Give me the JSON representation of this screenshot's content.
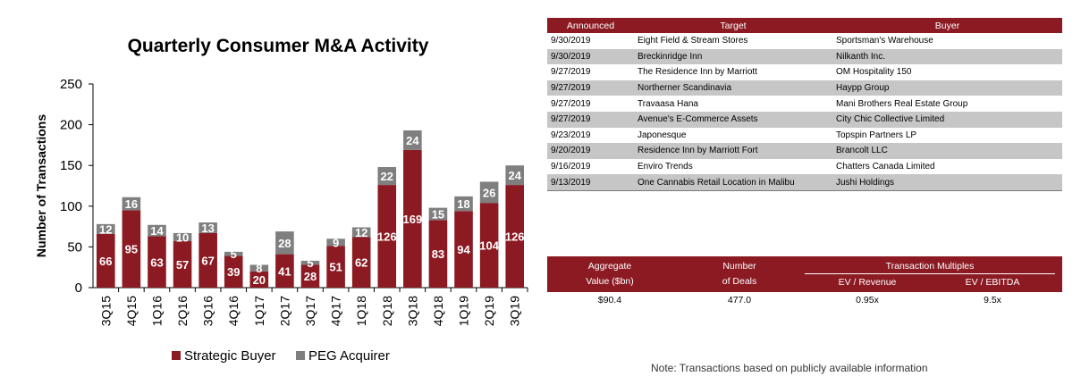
{
  "chart_data": {
    "type": "bar",
    "stacked": true,
    "title": "Quarterly Consumer M&A Activity",
    "ylabel": "Number of Transactions",
    "xlabel": "",
    "ylim": [
      0,
      250
    ],
    "yticks": [
      0,
      50,
      100,
      150,
      200,
      250
    ],
    "categories": [
      "3Q15",
      "4Q15",
      "1Q16",
      "2Q16",
      "3Q16",
      "4Q16",
      "1Q17",
      "2Q17",
      "3Q17",
      "4Q17",
      "1Q18",
      "2Q18",
      "3Q18",
      "4Q18",
      "1Q19",
      "2Q19",
      "3Q19"
    ],
    "series": [
      {
        "name": "Strategic Buyer",
        "color": "#8b1a22",
        "values": [
          66,
          95,
          63,
          57,
          67,
          39,
          20,
          41,
          28,
          51,
          62,
          126,
          169,
          83,
          94,
          104,
          126
        ]
      },
      {
        "name": "PEG Acquirer",
        "color": "#7f7f7f",
        "values": [
          12,
          16,
          14,
          10,
          13,
          5,
          8,
          28,
          5,
          9,
          12,
          22,
          24,
          15,
          18,
          26,
          24
        ]
      }
    ],
    "legend_position": "bottom"
  },
  "deals": {
    "headers": [
      "Announced",
      "Target",
      "Buyer"
    ],
    "rows": [
      [
        "9/30/2019",
        "Eight Field & Stream Stores",
        "Sportsman's Warehouse"
      ],
      [
        "9/30/2019",
        "Breckinridge Inn",
        "Nilkanth Inc."
      ],
      [
        "9/27/2019",
        "The Residence Inn by Marriott",
        "OM Hospitality 150"
      ],
      [
        "9/27/2019",
        "Northerner Scandinavia",
        "Haypp Group"
      ],
      [
        "9/27/2019",
        "Travaasa Hana",
        "Mani Brothers Real Estate Group"
      ],
      [
        "9/27/2019",
        "Avenue's E-Commerce Assets",
        "City Chic Collective Limited"
      ],
      [
        "9/23/2019",
        "Japonesque",
        "Topspin Partners LP"
      ],
      [
        "9/20/2019",
        "Residence Inn by Marriott Fort",
        "Brancolt LLC"
      ],
      [
        "9/16/2019",
        "Enviro Trends",
        "Chatters Canada Limited"
      ],
      [
        "9/13/2019",
        "One Cannabis Retail Location in Malibu",
        "Jushi Holdings"
      ]
    ]
  },
  "summary": {
    "aggregate_line1": "Aggregate",
    "aggregate_line2": "Value ($bn)",
    "deals_line1": "Number",
    "deals_line2": "of Deals",
    "multiples_label": "Transaction Multiples",
    "ev_revenue_label": "EV / Revenue",
    "ev_ebitda_label": "EV / EBITDA",
    "aggregate_value": "$90.4",
    "deals_value": "477.0",
    "ev_revenue_value": "0.95x",
    "ev_ebitda_value": "9.5x"
  },
  "note": "Note: Transactions based on publicly available information"
}
